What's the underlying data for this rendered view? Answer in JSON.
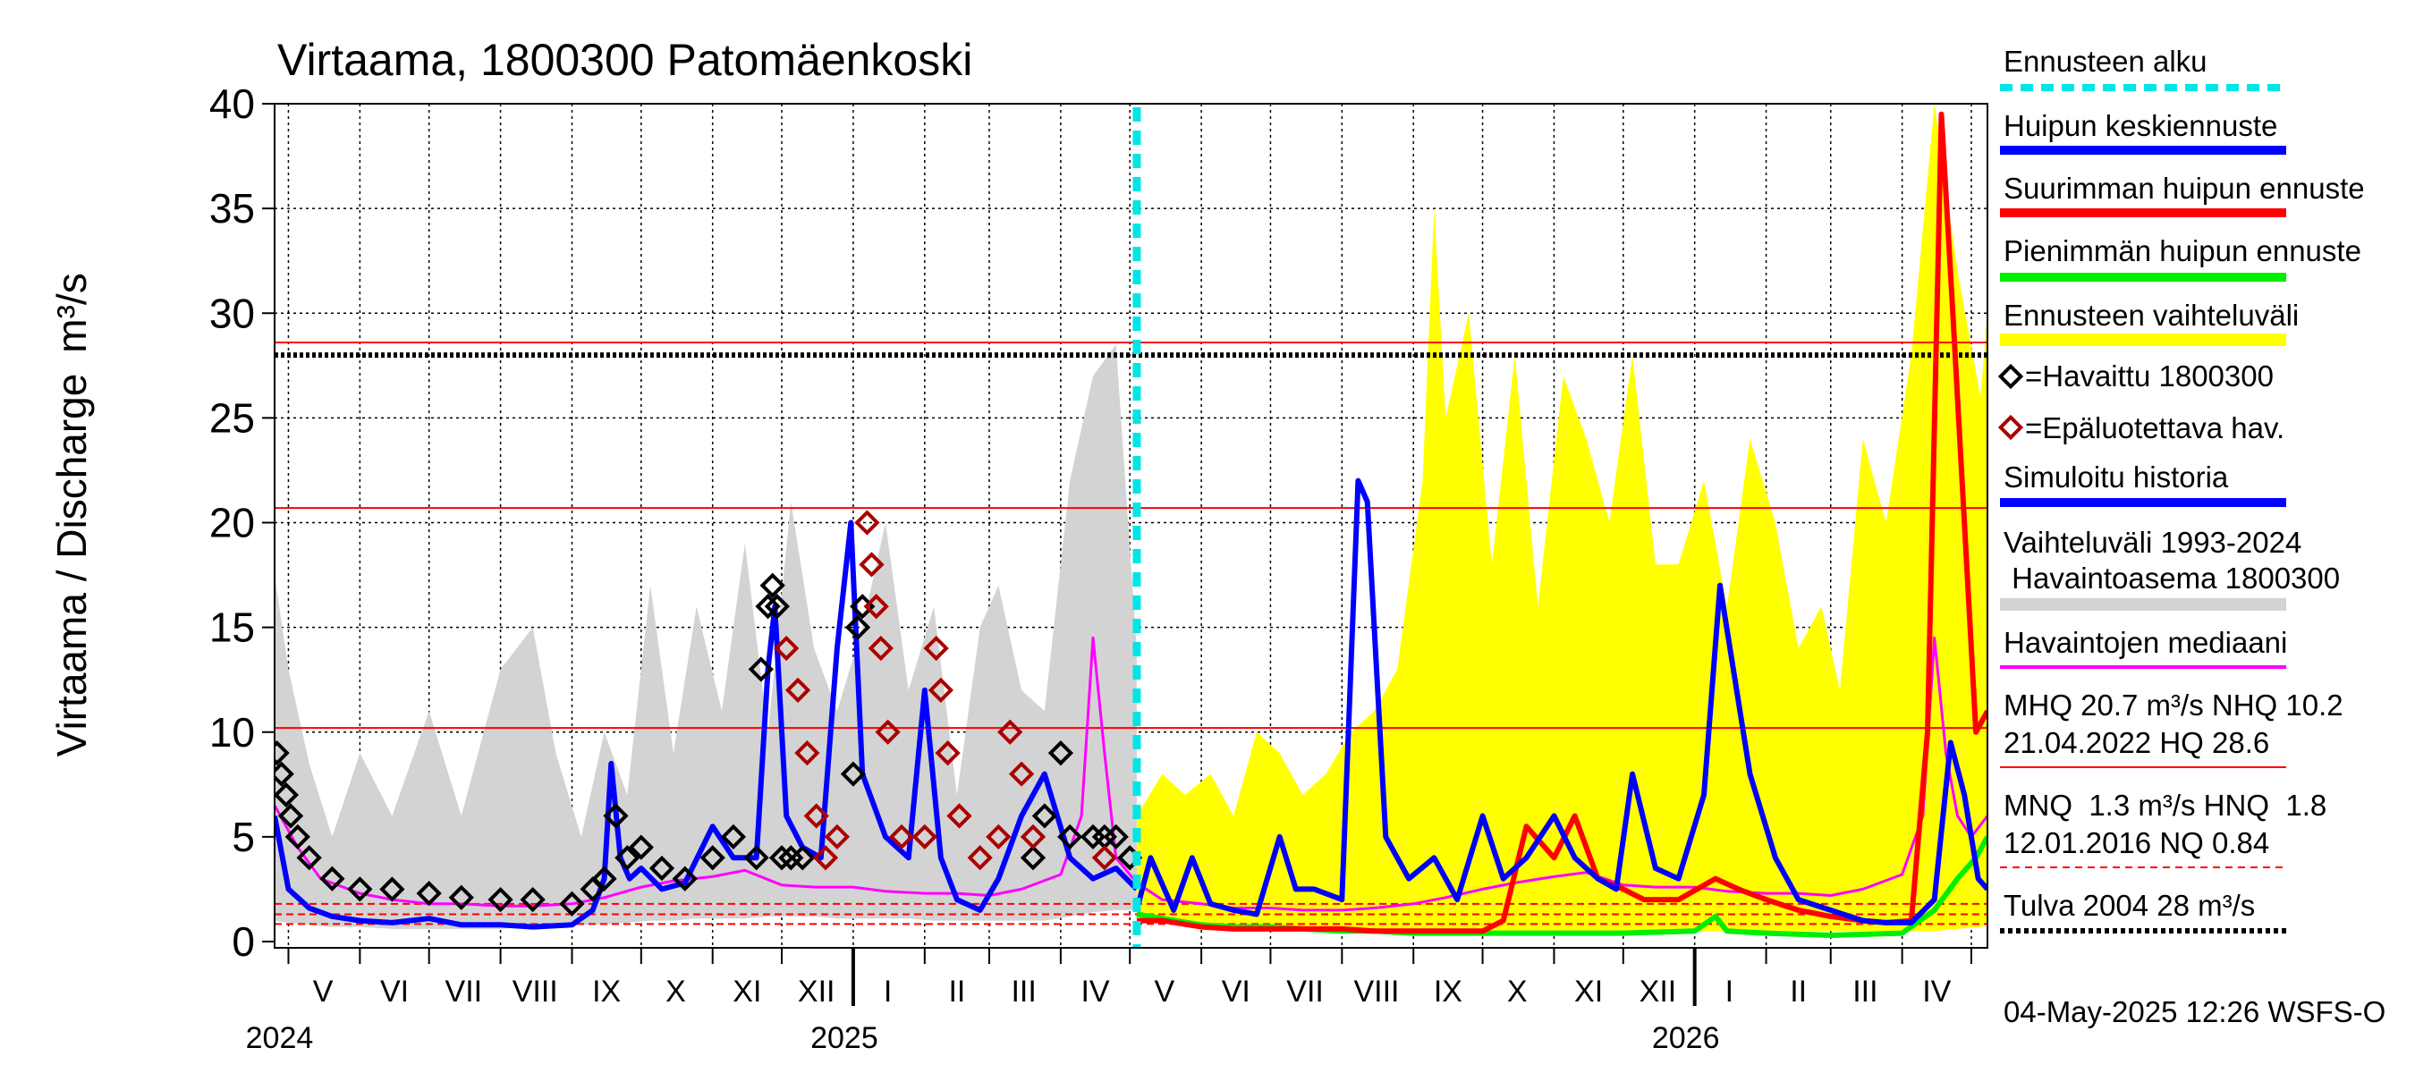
{
  "chart_data": {
    "type": "line",
    "title": "Virtaama, 1800300 Patomäenkoski",
    "ylabel": "Virtaama / Discharge",
    "yunit": "m³/s",
    "ylim": [
      0,
      40
    ],
    "yticks": [
      "0",
      "5",
      "10",
      "15",
      "20",
      "25",
      "30",
      "35",
      "40"
    ],
    "xlim": [
      "2024-04-25",
      "2026-05-08"
    ],
    "month_labels": [
      {
        "label": "V",
        "date": "2024-05-16"
      },
      {
        "label": "VI",
        "date": "2024-06-16"
      },
      {
        "label": "VII",
        "date": "2024-07-16"
      },
      {
        "label": "VIII",
        "date": "2024-08-16"
      },
      {
        "label": "IX",
        "date": "2024-09-16"
      },
      {
        "label": "X",
        "date": "2024-10-16"
      },
      {
        "label": "XI",
        "date": "2024-11-16"
      },
      {
        "label": "XII",
        "date": "2024-12-16"
      },
      {
        "label": "I",
        "date": "2025-01-16"
      },
      {
        "label": "II",
        "date": "2025-02-15"
      },
      {
        "label": "III",
        "date": "2025-03-16"
      },
      {
        "label": "IV",
        "date": "2025-04-16"
      },
      {
        "label": "V",
        "date": "2025-05-16"
      },
      {
        "label": "VI",
        "date": "2025-06-16"
      },
      {
        "label": "VII",
        "date": "2025-07-16"
      },
      {
        "label": "VIII",
        "date": "2025-08-16"
      },
      {
        "label": "IX",
        "date": "2025-09-16"
      },
      {
        "label": "X",
        "date": "2025-10-16"
      },
      {
        "label": "XI",
        "date": "2025-11-16"
      },
      {
        "label": "XII",
        "date": "2025-12-16"
      },
      {
        "label": "I",
        "date": "2026-01-16"
      },
      {
        "label": "II",
        "date": "2026-02-15"
      },
      {
        "label": "III",
        "date": "2026-03-16"
      },
      {
        "label": "IV",
        "date": "2026-04-16"
      }
    ],
    "year_labels": [
      {
        "label": "2024",
        "date": "2024-05-01"
      },
      {
        "label": "2025",
        "date": "2025-01-01"
      },
      {
        "label": "2026",
        "date": "2026-01-01"
      }
    ],
    "forecast_start": "2025-05-04",
    "reference_lines": [
      {
        "name": "HQ",
        "y": 28.6,
        "color": "#ff0000",
        "style": "solid"
      },
      {
        "name": "MHQ",
        "y": 20.7,
        "color": "#ff0000",
        "style": "solid"
      },
      {
        "name": "NHQ",
        "y": 10.2,
        "color": "#ff0000",
        "style": "solid"
      },
      {
        "name": "HNQ",
        "y": 1.8,
        "color": "#ff0000",
        "style": "dashed"
      },
      {
        "name": "MNQ",
        "y": 1.3,
        "color": "#ff0000",
        "style": "dashed"
      },
      {
        "name": "NQ",
        "y": 0.84,
        "color": "#ff0000",
        "style": "dashed"
      },
      {
        "name": "Tulva 2004",
        "y": 28.0,
        "color": "#000000",
        "style": "dotted"
      }
    ],
    "colors": {
      "historical_range": "#d3d3d3",
      "forecast_range": "#ffff00",
      "median": "#ff00ff",
      "simulated": "#0000ff",
      "mean_peak": "#0000ff",
      "max_peak": "#ff0000",
      "min_peak": "#00ee00",
      "observed": "#000000",
      "unreliable": "#aa0000",
      "forecast_start": "#00e5e5"
    },
    "series": [
      {
        "key": "historical_range",
        "kind": "band",
        "x": [
          "2024-04-25",
          "2024-05-01",
          "2024-05-10",
          "2024-05-20",
          "2024-06-01",
          "2024-06-15",
          "2024-07-01",
          "2024-07-15",
          "2024-08-01",
          "2024-08-15",
          "2024-08-25",
          "2024-09-05",
          "2024-09-15",
          "2024-09-25",
          "2024-10-05",
          "2024-10-15",
          "2024-10-25",
          "2024-11-05",
          "2024-11-15",
          "2024-11-25",
          "2024-12-05",
          "2024-12-15",
          "2024-12-25",
          "2025-01-05",
          "2025-01-15",
          "2025-01-25",
          "2025-02-05",
          "2025-02-15",
          "2025-02-25",
          "2025-03-05",
          "2025-03-15",
          "2025-03-25",
          "2025-04-05",
          "2025-04-15",
          "2025-04-25",
          "2025-05-04"
        ],
        "high": [
          17.5,
          13,
          8.5,
          5,
          9,
          6,
          11,
          6,
          13,
          15,
          9,
          5,
          10,
          7,
          17,
          9,
          16,
          11,
          19,
          10,
          21,
          14,
          11,
          15,
          20,
          12,
          16,
          7,
          15,
          17,
          12,
          11,
          22,
          27,
          28.5,
          14
        ],
        "low": [
          1,
          0.9,
          0.8,
          0.7,
          0.7,
          0.6,
          0.6,
          0.6,
          0.6,
          0.7,
          0.7,
          0.8,
          0.8,
          0.9,
          1,
          1,
          1.1,
          1.1,
          1.1,
          1.2,
          1.2,
          1.2,
          1.1,
          1.1,
          1.1,
          1.1,
          1,
          1,
          1,
          1,
          1,
          1,
          1.2,
          1.4,
          1.5,
          1.5
        ]
      },
      {
        "key": "forecast_range",
        "kind": "band",
        "x": [
          "2025-05-04",
          "2025-05-15",
          "2025-05-25",
          "2025-06-05",
          "2025-06-15",
          "2025-06-25",
          "2025-07-05",
          "2025-07-15",
          "2025-07-25",
          "2025-08-05",
          "2025-08-15",
          "2025-08-25",
          "2025-09-05",
          "2025-09-10",
          "2025-09-15",
          "2025-09-25",
          "2025-10-05",
          "2025-10-15",
          "2025-10-25",
          "2025-11-05",
          "2025-11-15",
          "2025-11-25",
          "2025-12-05",
          "2025-12-15",
          "2025-12-25",
          "2026-01-05",
          "2026-01-15",
          "2026-01-25",
          "2026-02-05",
          "2026-02-15",
          "2026-02-25",
          "2026-03-05",
          "2026-03-15",
          "2026-03-25",
          "2026-04-05",
          "2026-04-15",
          "2026-04-25",
          "2026-05-05",
          "2026-05-08"
        ],
        "high": [
          6,
          8,
          7,
          8,
          6,
          10,
          9,
          7,
          8,
          10,
          11,
          13,
          22,
          35,
          25,
          30,
          18,
          28,
          16,
          27,
          24,
          20,
          28,
          18,
          18,
          22,
          16,
          24,
          20,
          14,
          16,
          12,
          24,
          20,
          28,
          40,
          32,
          26,
          30
        ],
        "low": [
          1.2,
          1,
          1,
          0.9,
          0.8,
          0.7,
          0.7,
          0.6,
          0.6,
          0.5,
          0.5,
          0.5,
          0.5,
          0.5,
          0.5,
          0.5,
          0.5,
          0.5,
          0.5,
          0.5,
          0.5,
          0.5,
          0.5,
          0.5,
          0.5,
          0.5,
          0.5,
          0.5,
          0.5,
          0.5,
          0.5,
          0.5,
          0.5,
          0.5,
          0.5,
          0.5,
          0.6,
          0.7,
          0.8
        ]
      },
      {
        "key": "median",
        "kind": "line",
        "width": 3,
        "x": [
          "2024-04-25",
          "2024-05-05",
          "2024-05-15",
          "2024-06-01",
          "2024-06-15",
          "2024-07-01",
          "2024-07-15",
          "2024-08-01",
          "2024-08-15",
          "2024-09-01",
          "2024-09-15",
          "2024-10-01",
          "2024-10-15",
          "2024-11-01",
          "2024-11-15",
          "2024-12-01",
          "2024-12-15",
          "2025-01-01",
          "2025-01-15",
          "2025-02-01",
          "2025-02-15",
          "2025-03-01",
          "2025-03-15",
          "2025-04-01",
          "2025-04-10",
          "2025-04-15",
          "2025-04-20",
          "2025-04-25",
          "2025-05-04",
          "2025-05-15",
          "2025-06-01",
          "2025-06-15",
          "2025-07-01",
          "2025-07-15",
          "2025-08-01",
          "2025-08-15",
          "2025-09-01",
          "2025-09-15",
          "2025-10-01",
          "2025-10-15",
          "2025-11-01",
          "2025-11-15",
          "2025-12-01",
          "2025-12-15",
          "2026-01-01",
          "2026-01-15",
          "2026-02-01",
          "2026-02-15",
          "2026-03-01",
          "2026-03-15",
          "2026-04-01",
          "2026-04-10",
          "2026-04-15",
          "2026-04-20",
          "2026-04-25",
          "2026-05-01",
          "2026-05-08"
        ],
        "values": [
          6.5,
          4.5,
          3,
          2.3,
          2,
          1.8,
          1.8,
          1.7,
          1.7,
          1.8,
          2.1,
          2.6,
          2.9,
          3.1,
          3.4,
          2.7,
          2.6,
          2.6,
          2.4,
          2.3,
          2.3,
          2.2,
          2.5,
          3.2,
          6,
          14.5,
          9,
          4,
          2.8,
          2,
          1.8,
          1.6,
          1.6,
          1.5,
          1.5,
          1.6,
          1.8,
          2.1,
          2.5,
          2.8,
          3.1,
          3.3,
          2.7,
          2.6,
          2.6,
          2.4,
          2.3,
          2.3,
          2.2,
          2.5,
          3.2,
          6,
          14.5,
          9,
          6,
          5,
          6
        ]
      },
      {
        "key": "simulated",
        "kind": "line",
        "width": 6,
        "x": [
          "2024-04-25",
          "2024-05-01",
          "2024-05-10",
          "2024-05-20",
          "2024-06-01",
          "2024-06-15",
          "2024-07-01",
          "2024-07-15",
          "2024-08-01",
          "2024-08-15",
          "2024-09-01",
          "2024-09-10",
          "2024-09-15",
          "2024-09-18",
          "2024-09-22",
          "2024-09-26",
          "2024-10-01",
          "2024-10-10",
          "2024-10-20",
          "2024-11-01",
          "2024-11-10",
          "2024-11-20",
          "2024-11-25",
          "2024-11-28",
          "2024-12-03",
          "2024-12-10",
          "2024-12-18",
          "2024-12-25",
          "2024-12-31",
          "2025-01-05",
          "2025-01-15",
          "2025-01-25",
          "2025-02-01",
          "2025-02-08",
          "2025-02-15",
          "2025-02-25",
          "2025-03-05",
          "2025-03-15",
          "2025-03-25",
          "2025-04-05",
          "2025-04-15",
          "2025-04-25",
          "2025-05-04"
        ],
        "values": [
          6,
          2.5,
          1.6,
          1.2,
          1,
          0.9,
          1.1,
          0.8,
          0.8,
          0.7,
          0.8,
          1.5,
          3,
          8.5,
          4,
          3,
          3.5,
          2.5,
          2.8,
          5.5,
          4,
          4,
          13,
          16,
          6,
          4.5,
          4,
          14,
          20,
          8,
          5,
          4,
          12,
          4,
          2,
          1.5,
          3,
          6,
          8,
          4,
          3,
          3.5,
          2.5
        ]
      },
      {
        "key": "mean_peak",
        "kind": "line",
        "width": 6,
        "x": [
          "2025-05-04",
          "2025-05-10",
          "2025-05-20",
          "2025-05-28",
          "2025-06-05",
          "2025-06-15",
          "2025-06-25",
          "2025-07-05",
          "2025-07-12",
          "2025-07-20",
          "2025-08-01",
          "2025-08-08",
          "2025-08-12",
          "2025-08-20",
          "2025-08-30",
          "2025-09-10",
          "2025-09-20",
          "2025-10-01",
          "2025-10-10",
          "2025-10-20",
          "2025-11-01",
          "2025-11-10",
          "2025-11-20",
          "2025-11-28",
          "2025-12-05",
          "2025-12-15",
          "2025-12-25",
          "2026-01-05",
          "2026-01-12",
          "2026-01-25",
          "2026-02-05",
          "2026-02-15",
          "2026-03-01",
          "2026-03-15",
          "2026-03-25",
          "2026-04-05",
          "2026-04-15",
          "2026-04-22",
          "2026-04-28",
          "2026-05-04",
          "2026-05-08"
        ],
        "values": [
          1.5,
          4,
          1.5,
          4,
          1.8,
          1.5,
          1.3,
          5,
          2.5,
          2.5,
          2,
          22,
          21,
          5,
          3,
          4,
          2,
          6,
          3,
          4,
          6,
          4,
          3,
          2.5,
          8,
          3.5,
          3,
          7,
          17,
          8,
          4,
          2,
          1.5,
          1,
          0.9,
          0.9,
          2,
          9.5,
          7,
          3,
          2.5
        ]
      },
      {
        "key": "max_peak",
        "kind": "line",
        "width": 6,
        "x": [
          "2025-05-04",
          "2025-05-15",
          "2025-06-01",
          "2025-06-15",
          "2025-07-01",
          "2025-07-15",
          "2025-08-01",
          "2025-08-15",
          "2025-09-01",
          "2025-09-15",
          "2025-10-01",
          "2025-10-10",
          "2025-10-20",
          "2025-11-01",
          "2025-11-10",
          "2025-11-20",
          "2025-12-01",
          "2025-12-10",
          "2025-12-25",
          "2026-01-10",
          "2026-01-20",
          "2026-02-01",
          "2026-02-15",
          "2026-03-01",
          "2026-03-15",
          "2026-03-25",
          "2026-04-05",
          "2026-04-12",
          "2026-04-18",
          "2026-04-23",
          "2026-04-28",
          "2026-05-03",
          "2026-05-08"
        ],
        "values": [
          1,
          1,
          0.7,
          0.6,
          0.6,
          0.6,
          0.6,
          0.5,
          0.5,
          0.5,
          0.5,
          1,
          5.5,
          4,
          6,
          3,
          2.5,
          2,
          2,
          3,
          2.5,
          2,
          1.5,
          1.2,
          1,
          0.9,
          1,
          10,
          39.5,
          30,
          20,
          10,
          11
        ]
      },
      {
        "key": "min_peak",
        "kind": "line",
        "width": 6,
        "x": [
          "2025-05-04",
          "2025-05-15",
          "2025-06-01",
          "2025-06-15",
          "2025-07-01",
          "2025-07-15",
          "2025-08-01",
          "2025-08-15",
          "2025-09-01",
          "2025-09-15",
          "2025-10-01",
          "2025-11-01",
          "2025-12-01",
          "2026-01-01",
          "2026-01-10",
          "2026-01-15",
          "2026-02-01",
          "2026-03-01",
          "2026-04-01",
          "2026-04-15",
          "2026-04-25",
          "2026-05-03",
          "2026-05-08"
        ],
        "values": [
          1.3,
          1.1,
          0.8,
          0.7,
          0.7,
          0.6,
          0.5,
          0.5,
          0.4,
          0.4,
          0.4,
          0.4,
          0.4,
          0.5,
          1.2,
          0.5,
          0.4,
          0.3,
          0.4,
          1.5,
          3,
          4,
          5
        ]
      },
      {
        "key": "observed",
        "kind": "markers",
        "x": [
          "2024-04-26",
          "2024-04-28",
          "2024-04-30",
          "2024-05-02",
          "2024-05-05",
          "2024-05-10",
          "2024-05-20",
          "2024-06-01",
          "2024-06-15",
          "2024-07-01",
          "2024-07-15",
          "2024-08-01",
          "2024-08-15",
          "2024-09-01",
          "2024-09-10",
          "2024-09-15",
          "2024-09-20",
          "2024-09-25",
          "2024-10-01",
          "2024-10-10",
          "2024-10-20",
          "2024-11-01",
          "2024-11-10",
          "2024-11-20",
          "2024-11-22",
          "2024-11-25",
          "2024-11-27",
          "2024-11-29",
          "2024-12-01",
          "2024-12-05",
          "2024-12-10",
          "2025-01-01",
          "2025-01-03",
          "2025-01-05",
          "2025-03-20",
          "2025-03-25",
          "2025-04-01",
          "2025-04-05",
          "2025-04-15",
          "2025-04-20",
          "2025-04-25",
          "2025-05-01"
        ],
        "values": [
          9,
          8,
          7,
          6,
          5,
          4,
          3,
          2.5,
          2.5,
          2.3,
          2.1,
          2,
          2,
          1.8,
          2.5,
          3,
          6,
          4,
          4.5,
          3.5,
          3,
          4,
          5,
          4,
          13,
          16,
          17,
          16,
          4,
          4,
          4,
          8,
          15,
          16,
          4,
          6,
          9,
          5,
          5,
          5,
          5,
          4
        ]
      },
      {
        "key": "unreliable",
        "kind": "markers",
        "x": [
          "2024-12-03",
          "2024-12-08",
          "2024-12-12",
          "2024-12-16",
          "2024-12-20",
          "2024-12-25",
          "2025-01-07",
          "2025-01-09",
          "2025-01-11",
          "2025-01-13",
          "2025-01-16",
          "2025-01-22",
          "2025-02-01",
          "2025-02-06",
          "2025-02-08",
          "2025-02-11",
          "2025-02-16",
          "2025-02-25",
          "2025-03-05",
          "2025-03-10",
          "2025-03-15",
          "2025-03-20",
          "2025-04-20"
        ],
        "values": [
          14,
          12,
          9,
          6,
          4,
          5,
          20,
          18,
          16,
          14,
          10,
          5,
          5,
          14,
          12,
          9,
          6,
          4,
          5,
          10,
          8,
          5,
          4
        ]
      }
    ],
    "legend_placement": "right",
    "grid": true
  },
  "legend": {
    "forecast_start": "Ennusteen alku",
    "mean_peak": "Huipun keskiennuste",
    "max_peak": "Suurimman huipun ennuste",
    "min_peak": "Pienimmän huipun ennuste",
    "forecast_range": "Ennusteen vaihteluväli",
    "observed": "=Havaittu 1800300",
    "unreliable": "=Epäluotettava hav.",
    "simulated": "Simuloitu historia",
    "range_line1": "Vaihteluväli 1993-2024",
    "range_line2": " Havaintoasema 1800300",
    "median": "Havaintojen mediaani",
    "stats1_line1": "MHQ 20.7 m³/s NHQ 10.2",
    "stats1_line2": "21.04.2022 HQ 28.6",
    "stats2_line1": "MNQ  1.3 m³/s HNQ  1.8",
    "stats2_line2": "12.01.2016 NQ 0.84",
    "flood": "Tulva 2004 28 m³/s"
  },
  "footer": "04-May-2025 12:26 WSFS-O"
}
